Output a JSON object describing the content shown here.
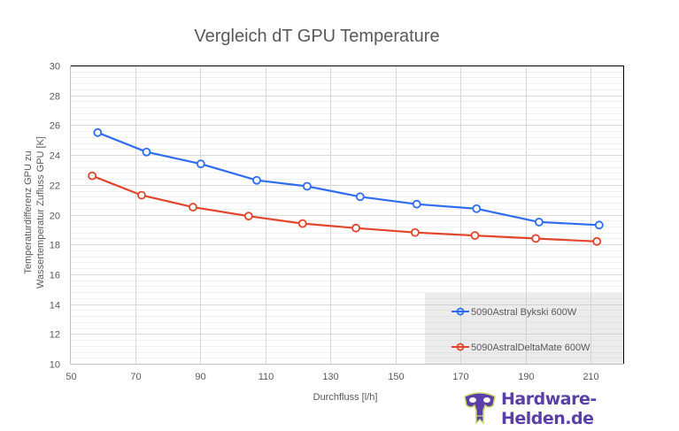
{
  "chart_data": {
    "type": "line",
    "title": "Vergleich dT GPU Temperature",
    "xlabel": "Durchfluss [l/h]",
    "ylabel": [
      "Temperaturdifferenz GPU zu",
      "Wassertemperatur Zufluss GPU [K]"
    ],
    "xlim": [
      50,
      220
    ],
    "ylim": [
      10,
      30
    ],
    "xticks": [
      50,
      70,
      90,
      110,
      130,
      150,
      170,
      190,
      210
    ],
    "yticks": [
      10,
      12,
      14,
      16,
      18,
      20,
      22,
      24,
      26,
      28,
      30
    ],
    "grid": {
      "major": true,
      "minor_y_step": 0.4,
      "vertical": true
    },
    "legend_position": "lower right (inside plot)",
    "series": [
      {
        "name": "5090Astral Bykski 600W",
        "color": "#2f6cf0",
        "marker": "open-circle",
        "x": [
          58.4,
          73.4,
          90.1,
          107.3,
          122.8,
          139.1,
          156.5,
          174.9,
          194.1,
          212.6
        ],
        "y": [
          25.5,
          24.2,
          23.4,
          22.3,
          21.9,
          21.2,
          20.7,
          20.4,
          19.5,
          19.3
        ]
      },
      {
        "name": "5090AstralDeltaMate 600W",
        "color": "#e2452b",
        "marker": "open-circle",
        "x": [
          56.7,
          71.9,
          87.7,
          104.8,
          121.4,
          137.8,
          156.0,
          174.4,
          193.1,
          211.9
        ],
        "y": [
          22.6,
          21.3,
          20.5,
          19.9,
          19.4,
          19.1,
          18.8,
          18.6,
          18.4,
          18.2
        ]
      }
    ]
  },
  "watermark": {
    "text": "Hardware-Helden.de",
    "icon": "mask-icon"
  }
}
